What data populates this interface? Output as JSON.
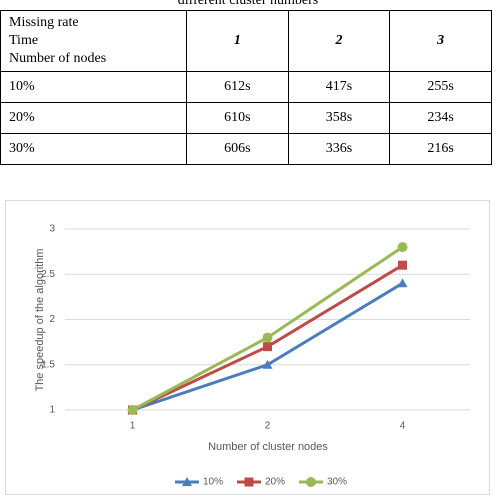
{
  "caption": "different cluster numbers",
  "table": {
    "header_lines": [
      "Missing rate",
      "Time",
      "Number of nodes"
    ],
    "columns": [
      "1",
      "2",
      "3"
    ],
    "rows": [
      [
        "10%",
        "612s",
        "417s",
        "255s"
      ],
      [
        "20%",
        "610s",
        "358s",
        "234s"
      ],
      [
        "30%",
        "606s",
        "336s",
        "216s"
      ]
    ]
  },
  "chart_data": {
    "type": "line",
    "y_label": "The speedup of the algorithm",
    "x_label": "Number of cluster nodes",
    "categories": [
      "1",
      "2",
      "4"
    ],
    "series": [
      {
        "name": "10%",
        "color": "#4a7ebb",
        "marker": "triangle",
        "values": [
          1,
          1.5,
          2.4
        ]
      },
      {
        "name": "20%",
        "color": "#be4b48",
        "marker": "square",
        "values": [
          1,
          1.7,
          2.6
        ]
      },
      {
        "name": "30%",
        "color": "#98b954",
        "marker": "circle",
        "values": [
          1,
          1.8,
          2.8
        ]
      }
    ],
    "ylim": [
      1,
      3
    ],
    "yticks": [
      1,
      1.5,
      2,
      2.5,
      3
    ],
    "grid": true,
    "legend": "bottom"
  }
}
